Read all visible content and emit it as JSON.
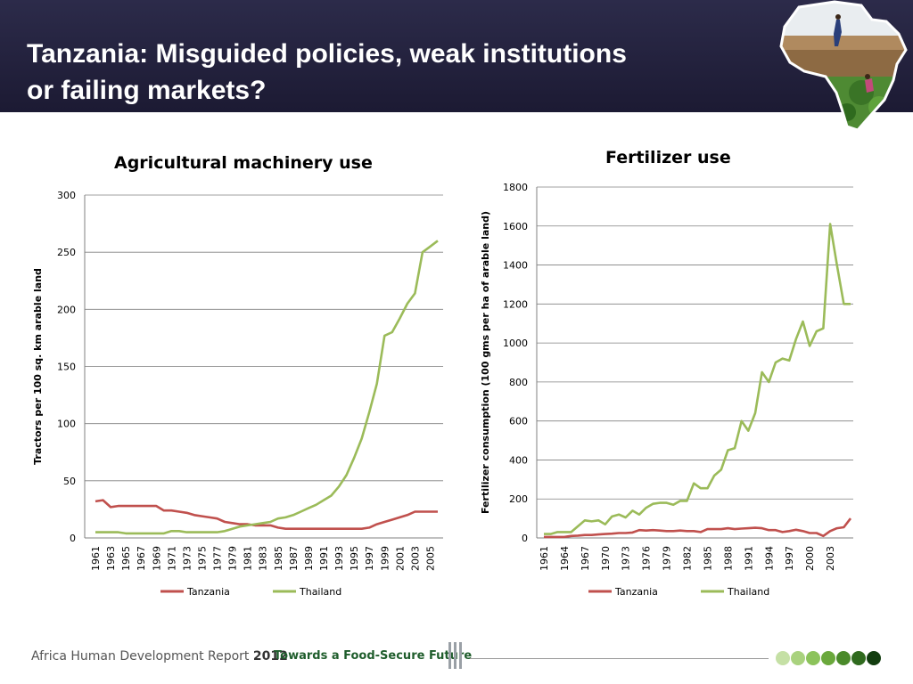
{
  "header": {
    "title_line1": "Tanzania: Misguided policies, weak institutions",
    "title_line2": "or failing markets?"
  },
  "footer": {
    "report": "Africa Human Development Report",
    "year": "2012",
    "tagline": "Towards a Food-Secure Future",
    "dot_colors": [
      "#c5e0a5",
      "#a9d27e",
      "#8cc35b",
      "#6aa83c",
      "#4a8a2a",
      "#2f6a1e",
      "#123d0f"
    ]
  },
  "colors": {
    "tanzania": "#c0504d",
    "thailand": "#9bbb59",
    "grid": "#808080"
  },
  "chart_data": [
    {
      "type": "line",
      "title": "Agricultural machinery use",
      "ylabel": "Tractors per 100 sq. km arable land",
      "xlabel": "",
      "ylim": [
        0,
        300
      ],
      "yticks": [
        0,
        50,
        100,
        150,
        200,
        250,
        300
      ],
      "x": [
        1961,
        1962,
        1963,
        1964,
        1965,
        1966,
        1967,
        1968,
        1969,
        1970,
        1971,
        1972,
        1973,
        1974,
        1975,
        1976,
        1977,
        1978,
        1979,
        1980,
        1981,
        1982,
        1983,
        1984,
        1985,
        1986,
        1987,
        1988,
        1989,
        1990,
        1991,
        1992,
        1993,
        1994,
        1995,
        1996,
        1997,
        1998,
        1999,
        2000,
        2001,
        2002,
        2003,
        2004,
        2005,
        2006
      ],
      "xtick_labels": [
        "1961",
        "1963",
        "1965",
        "1967",
        "1969",
        "1971",
        "1973",
        "1975",
        "1977",
        "1979",
        "1981",
        "1983",
        "1985",
        "1987",
        "1989",
        "1991",
        "1993",
        "1995",
        "1997",
        "1999",
        "2001",
        "2003",
        "2005"
      ],
      "legend_position": "bottom",
      "grid": "horizontal",
      "series": [
        {
          "name": "Tanzania",
          "values": [
            32,
            33,
            27,
            28,
            28,
            28,
            28,
            28,
            28,
            24,
            24,
            23,
            22,
            20,
            19,
            18,
            17,
            14,
            13,
            12,
            12,
            11,
            11,
            11,
            9,
            8,
            8,
            8,
            8,
            8,
            8,
            8,
            8,
            8,
            8,
            8,
            9,
            12,
            14,
            16,
            18,
            20,
            23,
            23,
            23,
            23
          ]
        },
        {
          "name": "Thailand",
          "values": [
            5,
            5,
            5,
            5,
            4,
            4,
            4,
            4,
            4,
            4,
            6,
            6,
            5,
            5,
            5,
            5,
            5,
            6,
            8,
            10,
            11,
            12,
            13,
            14,
            17,
            18,
            20,
            23,
            26,
            29,
            33,
            37,
            45,
            55,
            70,
            87,
            110,
            135,
            177,
            180,
            192,
            205,
            214,
            250,
            255,
            260
          ]
        }
      ]
    },
    {
      "type": "line",
      "title": "Fertilizer use",
      "ylabel": "Fertilizer consumption (100 gms per ha of arable land)",
      "xlabel": "",
      "ylim": [
        0,
        1800
      ],
      "yticks": [
        0,
        200,
        400,
        600,
        800,
        1000,
        1200,
        1400,
        1600,
        1800
      ],
      "x": [
        1961,
        1962,
        1963,
        1964,
        1965,
        1966,
        1967,
        1968,
        1969,
        1970,
        1971,
        1972,
        1973,
        1974,
        1975,
        1976,
        1977,
        1978,
        1979,
        1980,
        1981,
        1982,
        1983,
        1984,
        1985,
        1986,
        1987,
        1988,
        1989,
        1990,
        1991,
        1992,
        1993,
        1994,
        1995,
        1996,
        1997,
        1998,
        1999,
        2000,
        2001,
        2002,
        2003,
        2004,
        2005,
        2006
      ],
      "xtick_labels": [
        "1961",
        "1964",
        "1967",
        "1970",
        "1973",
        "1976",
        "1979",
        "1982",
        "1985",
        "1988",
        "1991",
        "1994",
        "1997",
        "2000",
        "2003"
      ],
      "legend_position": "bottom",
      "grid": "horizontal",
      "series": [
        {
          "name": "Tanzania",
          "values": [
            5,
            5,
            5,
            5,
            10,
            12,
            15,
            15,
            18,
            20,
            22,
            25,
            25,
            28,
            40,
            38,
            40,
            38,
            35,
            35,
            38,
            35,
            35,
            30,
            45,
            45,
            45,
            50,
            45,
            48,
            50,
            52,
            50,
            40,
            40,
            30,
            35,
            42,
            35,
            25,
            25,
            10,
            35,
            50,
            55,
            100
          ]
        },
        {
          "name": "Thailand",
          "values": [
            20,
            20,
            30,
            30,
            30,
            60,
            90,
            85,
            90,
            70,
            110,
            120,
            105,
            140,
            120,
            155,
            175,
            180,
            180,
            170,
            190,
            190,
            280,
            255,
            255,
            320,
            350,
            450,
            460,
            600,
            550,
            640,
            850,
            800,
            900,
            920,
            910,
            1020,
            1110,
            985,
            1060,
            1075,
            1610,
            1400,
            1200,
            1200
          ]
        }
      ]
    }
  ]
}
